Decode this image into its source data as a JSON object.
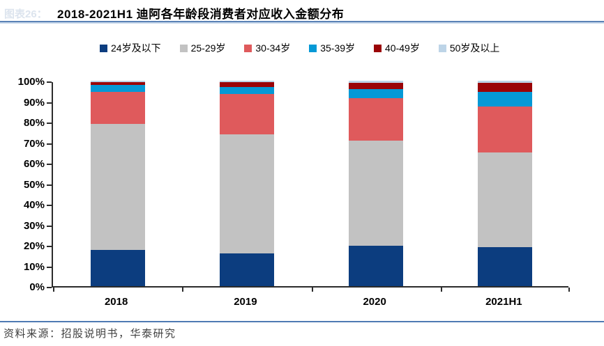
{
  "figure_label": "图表26：",
  "source_note": "资料来源：招股说明书，华泰研究",
  "chart_data": {
    "type": "bar",
    "stacked": true,
    "title": "2018-2021H1 迪阿各年龄段消费者对应收入金额分布",
    "xlabel": "",
    "ylabel": "",
    "categories": [
      "2018",
      "2019",
      "2020",
      "2021H1"
    ],
    "series": [
      {
        "name": "24岁及以下",
        "color": "#0c3d7f",
        "values": [
          17.5,
          16.0,
          19.5,
          19.0
        ]
      },
      {
        "name": "25-29岁",
        "color": "#c2c2c2",
        "values": [
          61.5,
          58.0,
          51.5,
          46.0
        ]
      },
      {
        "name": "30-34岁",
        "color": "#df5a5c",
        "values": [
          15.5,
          19.5,
          20.5,
          22.5
        ]
      },
      {
        "name": "35-39岁",
        "color": "#0599d6",
        "values": [
          3.5,
          3.5,
          4.5,
          7.0
        ]
      },
      {
        "name": "40-49岁",
        "color": "#9a0407",
        "values": [
          1.5,
          2.5,
          3.0,
          4.5
        ]
      },
      {
        "name": "50岁及以上",
        "color": "#bdd4e7",
        "values": [
          0.5,
          0.5,
          1.0,
          1.0
        ]
      }
    ],
    "ylim": [
      0,
      100
    ],
    "ytick_step": 10,
    "ytick_suffix": "%",
    "legend_position": "top",
    "grid": false,
    "axis_color": "#2b2b2b"
  }
}
